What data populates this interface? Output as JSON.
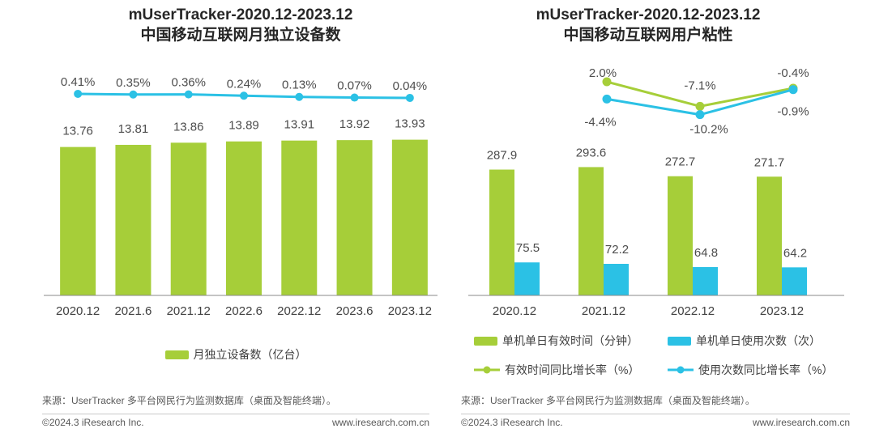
{
  "colors": {
    "green": "#a6ce39",
    "blue": "#2bc1e5",
    "title_text": "#262626",
    "value_text": "#4d4d4d",
    "axis_text": "#404040",
    "axis_line": "#8a8a8a",
    "footer_text": "#595959"
  },
  "chart_data": [
    {
      "type": "bar+line",
      "title": [
        "mUserTracker-2020.12-2023.12",
        "中国移动互联网月独立设备数"
      ],
      "categories": [
        "2020.12",
        "2021.6",
        "2021.12",
        "2022.6",
        "2022.12",
        "2023.6",
        "2023.12"
      ],
      "series": [
        {
          "name": "月独立设备数（亿台）",
          "type": "bar",
          "color": "green",
          "values": [
            13.76,
            13.81,
            13.86,
            13.89,
            13.91,
            13.92,
            13.93
          ],
          "labels": [
            "13.76",
            "13.81",
            "13.86",
            "13.89",
            "13.91",
            "13.92",
            "13.93"
          ]
        },
        {
          "type": "line",
          "color": "blue",
          "values": [
            0.41,
            0.35,
            0.36,
            0.24,
            0.13,
            0.07,
            0.04
          ],
          "labels": [
            "0.41%",
            "0.35%",
            "0.36%",
            "0.24%",
            "0.13%",
            "0.07%",
            "0.04%"
          ]
        }
      ],
      "legend_position": "bottom",
      "gridlines": false,
      "y_axis_visible": false
    },
    {
      "type": "grouped-bar+line",
      "title": [
        "mUserTracker-2020.12-2023.12",
        "中国移动互联网用户粘性"
      ],
      "categories": [
        "2020.12",
        "2021.12",
        "2022.12",
        "2023.12"
      ],
      "series": [
        {
          "name": "单机单日有效时间（分钟）",
          "type": "bar",
          "color": "green",
          "values": [
            287.9,
            293.6,
            272.7,
            271.7
          ],
          "labels": [
            "287.9",
            "293.6",
            "272.7",
            "271.7"
          ]
        },
        {
          "name": "单机单日使用次数（次）",
          "type": "bar",
          "color": "blue",
          "values": [
            75.5,
            72.2,
            64.8,
            64.2
          ],
          "labels": [
            "75.5",
            "72.2",
            "64.8",
            "64.2"
          ]
        },
        {
          "name": "有效时间同比增长率（%）",
          "type": "line",
          "color": "green",
          "categories": [
            "2021.12",
            "2022.12",
            "2023.12"
          ],
          "values": [
            2.0,
            -7.1,
            -0.4
          ],
          "labels": [
            "2.0%",
            "-7.1%",
            "-0.4%"
          ]
        },
        {
          "name": "使用次数同比增长率（%）",
          "type": "line",
          "color": "blue",
          "categories": [
            "2021.12",
            "2022.12",
            "2023.12"
          ],
          "values": [
            -4.4,
            -10.2,
            -0.9
          ],
          "labels": [
            "-4.4%",
            "-10.2%",
            "-0.9%"
          ]
        }
      ],
      "legend_position": "bottom",
      "gridlines": false,
      "y_axis_visible": false
    }
  ],
  "footer": {
    "source": "来源：UserTracker 多平台网民行为监测数据库（桌面及智能终端）。",
    "copyright": "©2024.3 iResearch Inc.",
    "website": "www.iresearch.com.cn"
  }
}
